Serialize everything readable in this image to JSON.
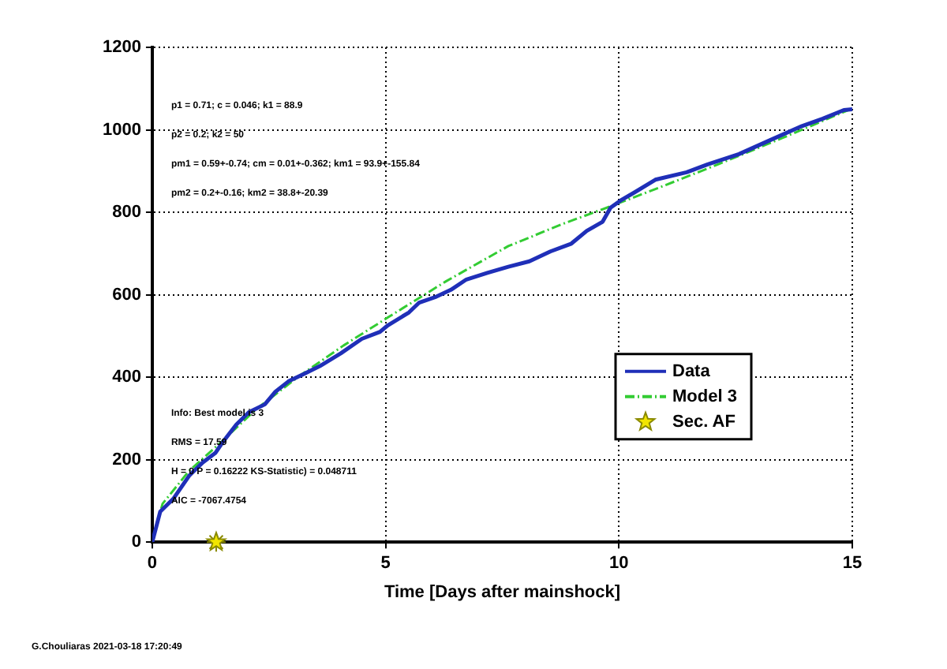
{
  "chart_data": {
    "type": "line",
    "xlabel": "Time [Days after mainshock]",
    "xlim": [
      0,
      15
    ],
    "xticks": [
      0,
      5,
      10,
      15
    ],
    "ylim": [
      0,
      1200
    ],
    "yticks": [
      0,
      200,
      400,
      600,
      800,
      1000,
      1200
    ],
    "grid": true,
    "legend": "right",
    "marker": "none",
    "series": [
      {
        "name": "Data",
        "color": "#1f2fb8",
        "line_style": "solid",
        "x": [
          0,
          0.17,
          0.45,
          0.79,
          1.07,
          1.35,
          1.5,
          1.8,
          2.07,
          2.41,
          2.64,
          2.92,
          3.25,
          3.59,
          4.04,
          4.49,
          4.88,
          5.05,
          5.5,
          5.72,
          6.06,
          6.4,
          6.73,
          7.18,
          7.63,
          8.08,
          8.53,
          8.98,
          9.31,
          9.65,
          9.82,
          10.04,
          10.33,
          10.78,
          11.45,
          11.9,
          12.57,
          13.24,
          13.92,
          14.37,
          14.82,
          15
        ],
        "values": [
          0,
          74,
          105,
          161,
          192,
          216,
          241,
          285,
          315,
          334,
          365,
          390,
          408,
          427,
          458,
          493,
          510,
          526,
          557,
          581,
          594,
          612,
          637,
          653,
          668,
          681,
          705,
          724,
          755,
          777,
          811,
          829,
          848,
          879,
          897,
          916,
          941,
          975,
          1009,
          1027,
          1048,
          1050
        ]
      },
      {
        "name": "Model 3",
        "color": "#33cc33",
        "line_style": "dashed",
        "x": [
          0,
          0.22,
          0.79,
          1.5,
          2.2,
          3.14,
          4.1,
          5.05,
          6.3,
          7.63,
          8.8,
          9.88,
          11,
          12.12,
          13.5,
          15
        ],
        "values": [
          0,
          93,
          173,
          245,
          320,
          402,
          477,
          545,
          633,
          718,
          772,
          817,
          866,
          916,
          980,
          1052
        ]
      },
      {
        "name": "Sec. AF",
        "type": "scatter",
        "marker": "star",
        "color": "#f2e600",
        "x": [
          1.37
        ],
        "values": [
          0
        ]
      }
    ],
    "annotations": [
      "p1 = 0.71; c = 0.046; k1 = 88.9",
      "p2 = 0.2; k2 = 50",
      "pm1 = 0.59+-0.74; cm = 0.01+-0.362; km1 = 93.9+-155.84",
      "pm2 = 0.2+-0.16; km2 = 38.8+-20.39",
      "Info: Best model is 3",
      "RMS = 17.59",
      "H = 0 P = 0.16222 KS-Statistic) = 0.048711",
      "AIC = -7067.4754",
      "G.Chouliaras 2021-03-18 17:20:49"
    ]
  }
}
